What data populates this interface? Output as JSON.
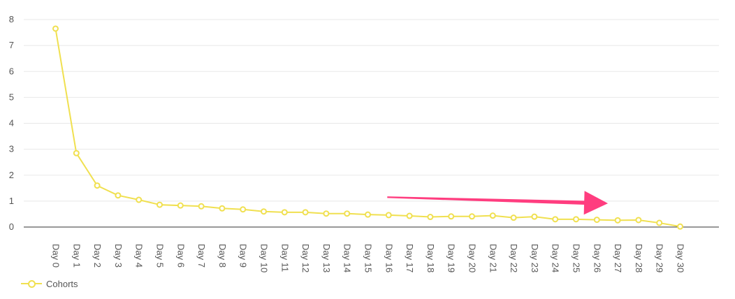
{
  "chart_data": {
    "type": "line",
    "categories": [
      "Day 0",
      "Day 1",
      "Day 2",
      "Day 3",
      "Day 4",
      "Day 5",
      "Day 6",
      "Day 7",
      "Day 8",
      "Day 9",
      "Day 10",
      "Day 11",
      "Day 12",
      "Day 13",
      "Day 14",
      "Day 15",
      "Day 16",
      "Day 17",
      "Day 18",
      "Day 19",
      "Day 20",
      "Day 21",
      "Day 22",
      "Day 23",
      "Day 24",
      "Day 25",
      "Day 26",
      "Day 27",
      "Day 28",
      "Day 29",
      "Day 30"
    ],
    "series": [
      {
        "name": "Cohorts",
        "color": "#f0e050",
        "values": [
          7.65,
          2.85,
          1.6,
          1.22,
          1.05,
          0.86,
          0.83,
          0.8,
          0.72,
          0.68,
          0.6,
          0.57,
          0.57,
          0.52,
          0.52,
          0.48,
          0.46,
          0.43,
          0.39,
          0.41,
          0.41,
          0.44,
          0.36,
          0.4,
          0.3,
          0.3,
          0.28,
          0.26,
          0.27,
          0.16,
          0.02
        ]
      }
    ],
    "ylim": [
      0,
      8
    ],
    "yticks": [
      0,
      1,
      2,
      3,
      4,
      5,
      6,
      7,
      8
    ],
    "grid": true,
    "legend": "bottom-left",
    "annotation": {
      "type": "arrow",
      "color": "#ff3d7f",
      "from_x": "Day 16",
      "to_x": "Day 27",
      "from_y": 1.15,
      "to_y": 1.1
    }
  }
}
